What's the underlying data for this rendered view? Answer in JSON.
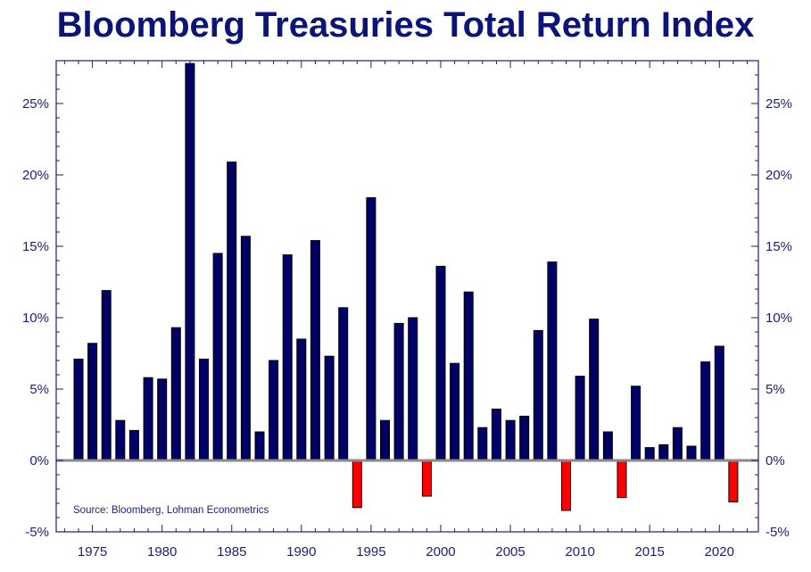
{
  "chart_data": {
    "type": "bar",
    "title": "Bloomberg Treasuries Total Return Index",
    "source": "Source: Bloomberg, Lohman Econometrics",
    "x_tick_labels": [
      "1975",
      "1980",
      "1985",
      "1990",
      "1995",
      "2000",
      "2005",
      "2010",
      "2015",
      "2020"
    ],
    "x_tick_values": [
      1975,
      1980,
      1985,
      1990,
      1995,
      2000,
      2005,
      2010,
      2015,
      2020
    ],
    "y_tick_labels": [
      "-5%",
      "0%",
      "5%",
      "10%",
      "15%",
      "20%",
      "25%"
    ],
    "y_tick_values": [
      -5,
      0,
      5,
      10,
      15,
      20,
      25
    ],
    "ylim": [
      -5,
      28
    ],
    "xlim": [
      1972.4,
      2022.8
    ],
    "grid": false,
    "colors": {
      "positive": "#000066",
      "negative": "#ff0000",
      "axis": "#1a1f7a",
      "zero_line": "#8a8a8a",
      "title": "#0c1478"
    },
    "categories": [
      1974,
      1975,
      1976,
      1977,
      1978,
      1979,
      1980,
      1981,
      1982,
      1983,
      1984,
      1985,
      1986,
      1987,
      1988,
      1989,
      1990,
      1991,
      1992,
      1993,
      1994,
      1995,
      1996,
      1997,
      1998,
      1999,
      2000,
      2001,
      2002,
      2003,
      2004,
      2005,
      2006,
      2007,
      2008,
      2009,
      2010,
      2011,
      2012,
      2013,
      2014,
      2015,
      2016,
      2017,
      2018,
      2019,
      2020,
      2021
    ],
    "values": [
      7.1,
      8.2,
      11.9,
      2.8,
      2.1,
      5.8,
      5.7,
      9.3,
      27.8,
      7.1,
      14.5,
      20.9,
      15.7,
      2.0,
      7.0,
      14.4,
      8.5,
      15.4,
      7.3,
      10.7,
      -3.3,
      18.4,
      2.8,
      9.6,
      10.0,
      -2.5,
      13.6,
      6.8,
      11.8,
      2.3,
      3.6,
      2.8,
      3.1,
      9.1,
      13.9,
      -3.5,
      5.9,
      9.9,
      2.0,
      -2.6,
      5.2,
      0.9,
      1.1,
      2.3,
      1.0,
      6.9,
      8.0,
      -2.9
    ]
  }
}
